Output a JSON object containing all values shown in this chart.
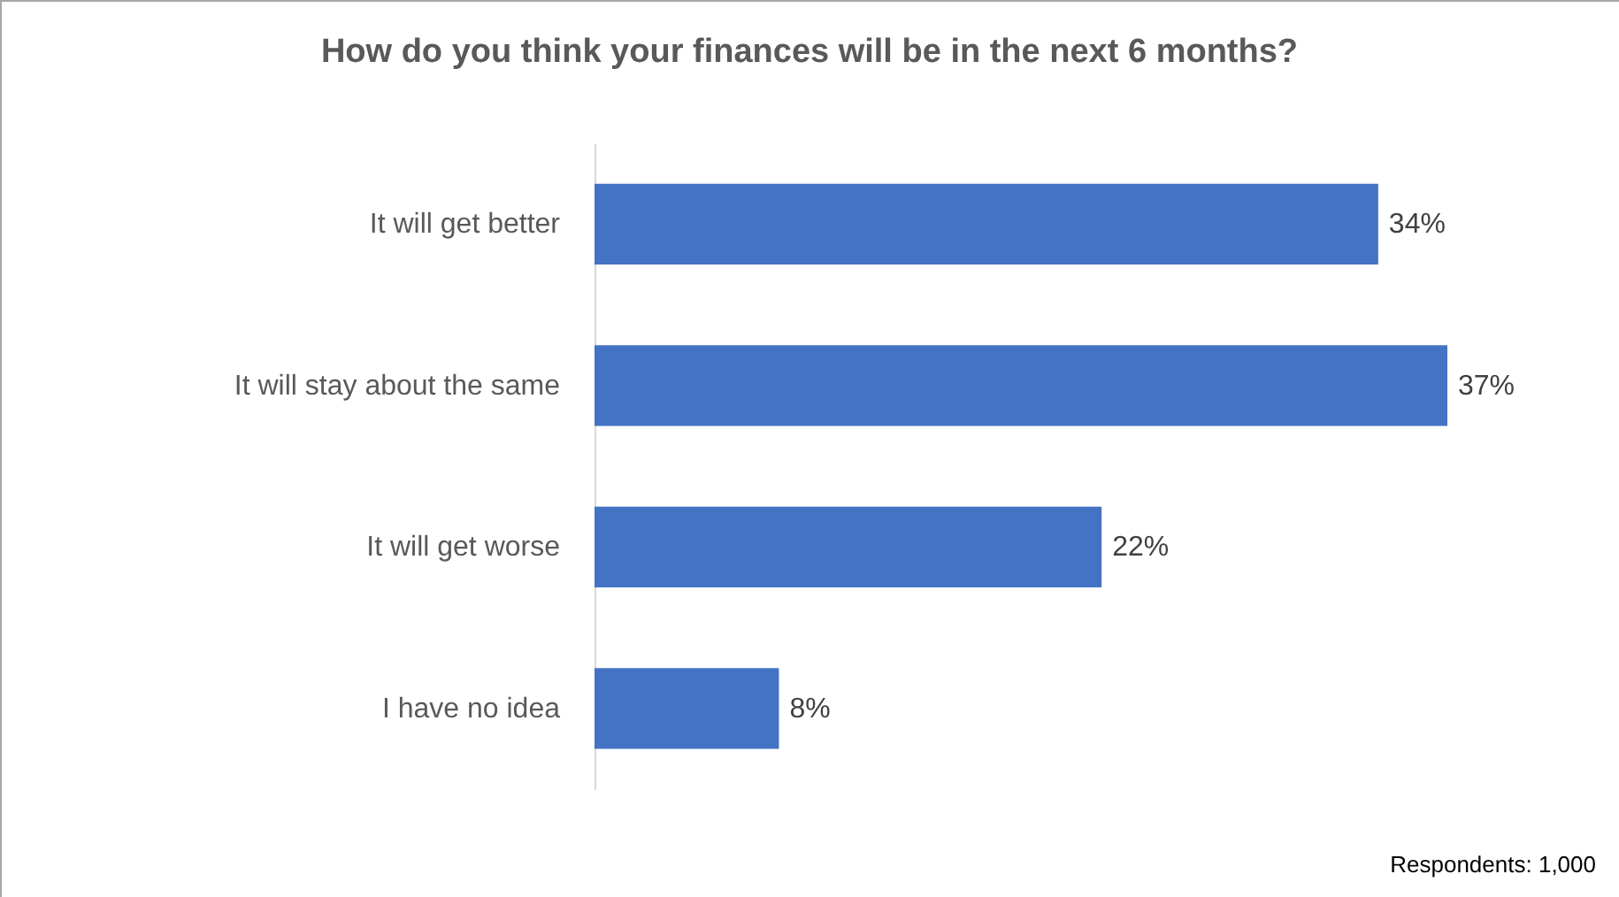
{
  "chart_data": {
    "type": "bar",
    "orientation": "horizontal",
    "title": "How do you think your finances will be in the next 6 months?",
    "categories": [
      "It will get better",
      "It will stay about the same",
      "It will get worse",
      "I have no idea"
    ],
    "values": [
      34,
      37,
      22,
      8
    ],
    "value_labels": [
      "34%",
      "37%",
      "22%",
      "8%"
    ],
    "color": "#4472c4",
    "grid": false,
    "annotations": [
      "Respondents: 1,000"
    ]
  }
}
